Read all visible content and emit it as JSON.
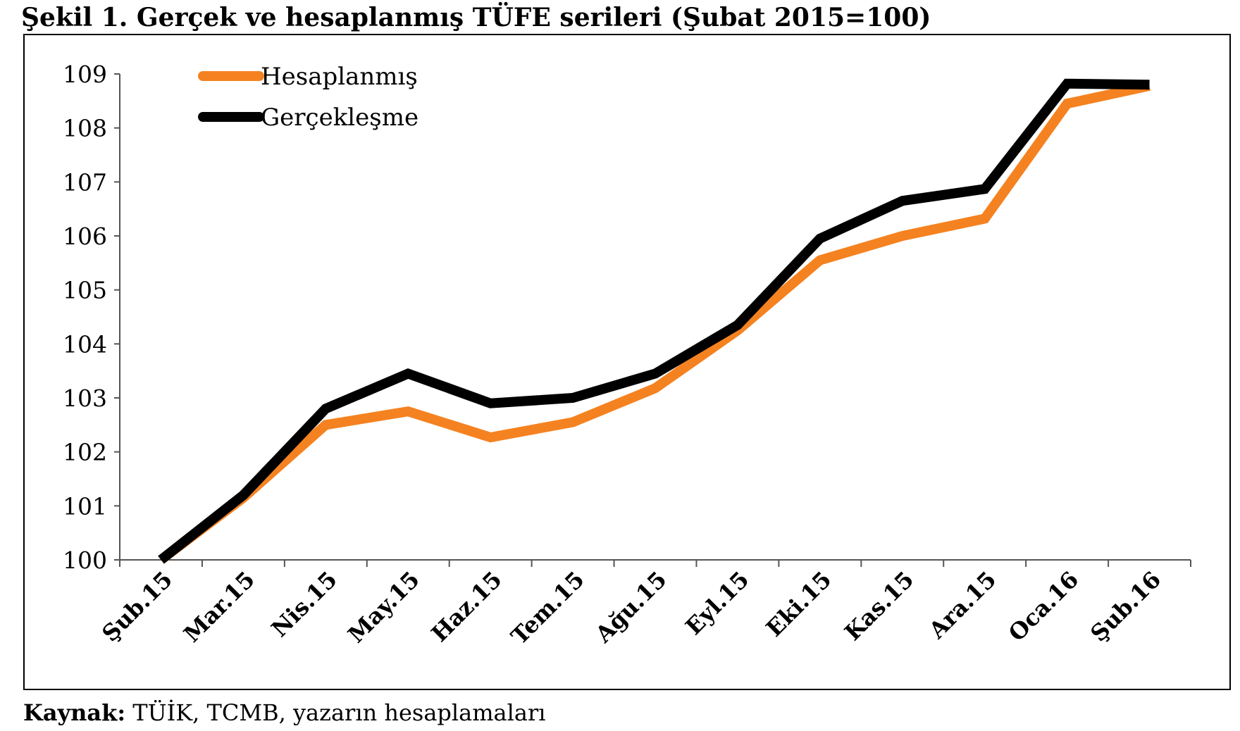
{
  "title": "Şekil 1. Gerçek ve hesaplanmış TÜFE serileri (Şubat 2015=100)",
  "source": {
    "label": "Kaynak:",
    "text": " TÜİK, TCMB, yazarın hesaplamaları"
  },
  "chart_data": {
    "type": "line",
    "title": "Şekil 1. Gerçek ve hesaplanmış TÜFE serileri (Şubat 2015=100)",
    "xlabel": "",
    "ylabel": "",
    "ylim": [
      100,
      109
    ],
    "yticks": [
      100,
      101,
      102,
      103,
      104,
      105,
      106,
      107,
      108,
      109
    ],
    "categories": [
      "Şub.15",
      "Mar.15",
      "Nis.15",
      "May.15",
      "Haz.15",
      "Tem.15",
      "Ağu.15",
      "Eyl.15",
      "Eki.15",
      "Kas.15",
      "Ara.15",
      "Oca.16",
      "Şub.16"
    ],
    "grid": false,
    "legend_position": "top-left",
    "series": [
      {
        "name": "Hesaplanmış",
        "color": "#F58220",
        "values": [
          100.0,
          101.15,
          102.5,
          102.75,
          102.27,
          102.55,
          103.18,
          104.25,
          105.55,
          106.0,
          106.32,
          108.45,
          108.78
        ]
      },
      {
        "name": "Gerçekleşme",
        "color": "#000000",
        "values": [
          100.0,
          101.2,
          102.8,
          103.45,
          102.9,
          103.0,
          103.45,
          104.35,
          105.95,
          106.65,
          106.87,
          108.82,
          108.8
        ]
      }
    ]
  }
}
